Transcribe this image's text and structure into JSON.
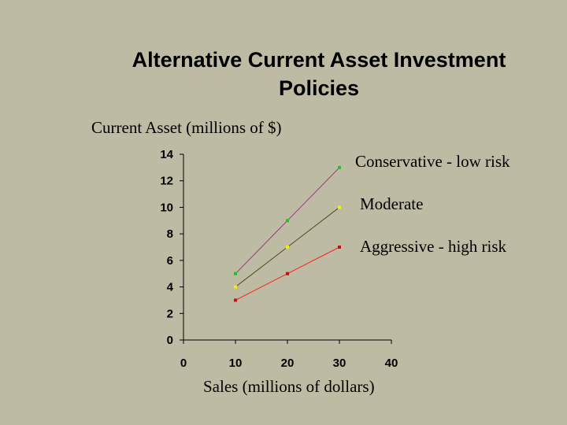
{
  "slide": {
    "title_line1": "Alternative Current Asset Investment",
    "title_line2": "Policies"
  },
  "chart_data": {
    "type": "line",
    "title": "Alternative Current Asset Investment Policies",
    "ylabel": "Current Asset (millions of $)",
    "xlabel": "Sales (millions of dollars)",
    "xlim": [
      0,
      40
    ],
    "ylim": [
      0,
      14
    ],
    "x_ticks": [
      "0",
      "10",
      "20",
      "30",
      "40"
    ],
    "y_ticks": [
      "0",
      "2",
      "4",
      "6",
      "8",
      "10",
      "12",
      "14"
    ],
    "grid": false,
    "x": [
      10,
      20,
      30
    ],
    "series": [
      {
        "name": "Conservative - low risk",
        "values": [
          5,
          9,
          13
        ],
        "color": "#9b3e7a",
        "marker_color": "#22c422"
      },
      {
        "name": "Moderate",
        "values": [
          4,
          7,
          10
        ],
        "color": "#4d4d1a",
        "marker_color": "#f2f200"
      },
      {
        "name": "Aggressive - high risk",
        "values": [
          3,
          5,
          7
        ],
        "color": "#ff2020",
        "marker_color": "#c41010"
      }
    ]
  }
}
